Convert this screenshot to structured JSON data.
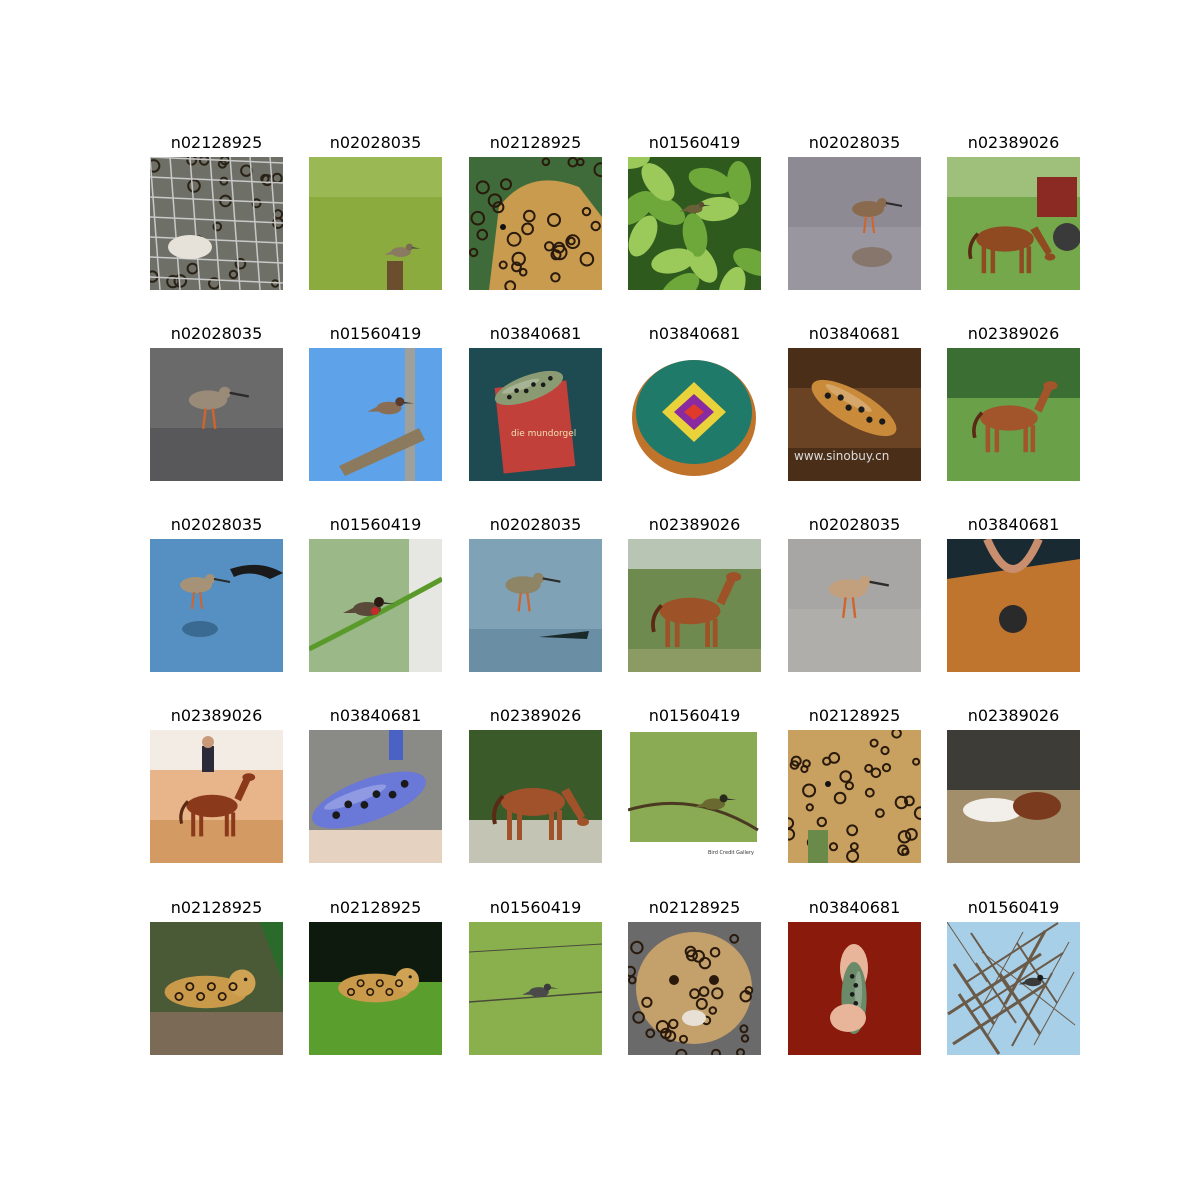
{
  "grid": {
    "rows": 5,
    "cols": 6,
    "cells": [
      {
        "label": "n02128925",
        "scene": "jaguar-fence"
      },
      {
        "label": "n02028035",
        "scene": "bird-post-grass"
      },
      {
        "label": "n02128925",
        "scene": "jaguar-profile"
      },
      {
        "label": "n01560419",
        "scene": "bird-leaves"
      },
      {
        "label": "n02028035",
        "scene": "shorebird-water-gray"
      },
      {
        "label": "n02389026",
        "scene": "horse-grazing-tractor"
      },
      {
        "label": "n02028035",
        "scene": "shorebird-mud"
      },
      {
        "label": "n01560419",
        "scene": "bird-pole-sky"
      },
      {
        "label": "n03840681",
        "scene": "ocarina-book"
      },
      {
        "label": "n03840681",
        "scene": "ocarina-painted"
      },
      {
        "label": "n03840681",
        "scene": "ocarina-wood"
      },
      {
        "label": "n02389026",
        "scene": "horse-standing-field"
      },
      {
        "label": "n02028035",
        "scene": "shorebird-blue-water"
      },
      {
        "label": "n01560419",
        "scene": "bulbul-branch"
      },
      {
        "label": "n02028035",
        "scene": "shorebird-lake"
      },
      {
        "label": "n02389026",
        "scene": "horse-side"
      },
      {
        "label": "n02028035",
        "scene": "shorebird-water-beige"
      },
      {
        "label": "n03840681",
        "scene": "person-upside-down"
      },
      {
        "label": "n02389026",
        "scene": "horse-rider"
      },
      {
        "label": "n03840681",
        "scene": "ocarina-blue"
      },
      {
        "label": "n02389026",
        "scene": "horse-grazing-trees"
      },
      {
        "label": "n01560419",
        "scene": "bird-twig-green"
      },
      {
        "label": "n02128925",
        "scene": "jaguar-lying"
      },
      {
        "label": "n02389026",
        "scene": "horses-lying"
      },
      {
        "label": "n02128925",
        "scene": "jaguar-jungle"
      },
      {
        "label": "n02128925",
        "scene": "jaguar-grass"
      },
      {
        "label": "n01560419",
        "scene": "bird-wire-green"
      },
      {
        "label": "n02128925",
        "scene": "jaguar-face"
      },
      {
        "label": "n03840681",
        "scene": "ocarina-hands-red"
      },
      {
        "label": "n01560419",
        "scene": "bird-branches-sky"
      }
    ]
  },
  "overlay_text": {
    "ocarina_book_text": "die mundorgel",
    "ocarina_wood_watermark": "www.sinobuy.cn",
    "bird_twig_signature": "Bird Credit Gallery"
  }
}
